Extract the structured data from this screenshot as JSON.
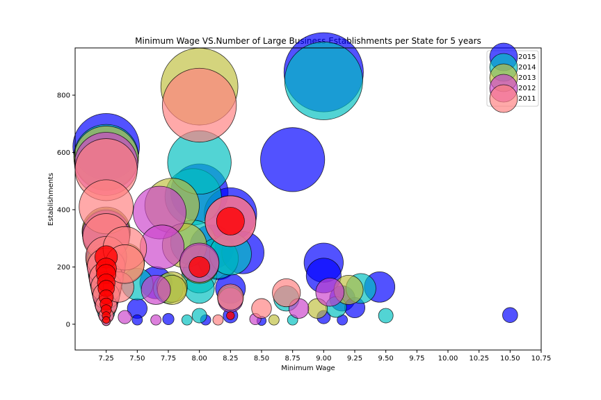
{
  "chart_data": {
    "type": "scatter",
    "title": "Minimum Wage VS.Number of Large Business Establishments per State for 5 years",
    "xlabel": "Minimum Wage",
    "ylabel": "Establishments",
    "xlim": [
      7.0,
      10.75
    ],
    "ylim": [
      -90,
      965
    ],
    "xticks": [
      7.25,
      7.5,
      7.75,
      8.0,
      8.25,
      8.5,
      8.75,
      9.0,
      9.25,
      9.5,
      9.75,
      10.0,
      10.25,
      10.5,
      10.75
    ],
    "xtick_labels": [
      "7.25",
      "7.50",
      "7.75",
      "8.00",
      "8.25",
      "8.50",
      "8.75",
      "9.00",
      "9.25",
      "9.50",
      "9.75",
      "10.00",
      "10.25",
      "10.50",
      "10.75"
    ],
    "yticks": [
      0,
      200,
      400,
      600,
      800
    ],
    "ytick_labels": [
      "0",
      "200",
      "400",
      "600",
      "800"
    ],
    "grid": false,
    "legend_position": "top-right",
    "marker_size_encodes": "establishments",
    "series": [
      {
        "name": "2015",
        "color": "#0000ff",
        "points": [
          [
            7.25,
            620
          ],
          [
            7.25,
            320
          ],
          [
            7.25,
            230
          ],
          [
            7.25,
            180
          ],
          [
            7.25,
            150
          ],
          [
            7.25,
            120
          ],
          [
            7.25,
            90
          ],
          [
            7.25,
            60
          ],
          [
            7.25,
            30
          ],
          [
            7.25,
            10
          ],
          [
            7.5,
            55
          ],
          [
            7.5,
            15
          ],
          [
            7.65,
            145
          ],
          [
            7.75,
            18
          ],
          [
            8.0,
            460
          ],
          [
            8.05,
            15
          ],
          [
            8.1,
            270
          ],
          [
            8.15,
            225
          ],
          [
            8.25,
            385
          ],
          [
            8.25,
            125
          ],
          [
            8.25,
            30
          ],
          [
            8.35,
            250
          ],
          [
            8.5,
            12
          ],
          [
            8.75,
            575
          ],
          [
            9.0,
            880
          ],
          [
            9.0,
            215
          ],
          [
            9.0,
            170
          ],
          [
            9.0,
            25
          ],
          [
            9.15,
            90
          ],
          [
            9.15,
            15
          ],
          [
            9.25,
            58
          ],
          [
            9.45,
            130
          ],
          [
            10.5,
            32
          ]
        ]
      },
      {
        "name": "2014",
        "color": "#00c0c0",
        "points": [
          [
            7.25,
            585
          ],
          [
            7.25,
            310
          ],
          [
            7.25,
            225
          ],
          [
            7.25,
            175
          ],
          [
            7.25,
            140
          ],
          [
            7.25,
            100
          ],
          [
            7.25,
            70
          ],
          [
            7.25,
            40
          ],
          [
            7.5,
            140
          ],
          [
            7.75,
            125
          ],
          [
            7.9,
            15
          ],
          [
            7.95,
            445
          ],
          [
            7.95,
            285
          ],
          [
            8.0,
            565
          ],
          [
            8.0,
            170
          ],
          [
            8.0,
            125
          ],
          [
            8.0,
            30
          ],
          [
            8.15,
            230
          ],
          [
            8.25,
            245
          ],
          [
            8.25,
            90
          ],
          [
            8.7,
            90
          ],
          [
            8.75,
            15
          ],
          [
            9.0,
            850
          ],
          [
            9.1,
            60
          ],
          [
            9.3,
            125
          ],
          [
            9.5,
            30
          ]
        ]
      },
      {
        "name": "2013",
        "color": "#c0c040",
        "points": [
          [
            7.25,
            580
          ],
          [
            7.25,
            325
          ],
          [
            7.25,
            215
          ],
          [
            7.25,
            165
          ],
          [
            7.25,
            120
          ],
          [
            7.25,
            70
          ],
          [
            7.4,
            215
          ],
          [
            7.78,
            415
          ],
          [
            7.78,
            130
          ],
          [
            7.78,
            120
          ],
          [
            7.88,
            275
          ],
          [
            8.0,
            830
          ],
          [
            8.0,
            210
          ],
          [
            8.6,
            15
          ],
          [
            8.95,
            55
          ],
          [
            9.2,
            120
          ]
        ]
      },
      {
        "name": "2012",
        "color": "#cc44cc",
        "points": [
          [
            7.25,
            560
          ],
          [
            7.25,
            315
          ],
          [
            7.25,
            205
          ],
          [
            7.25,
            160
          ],
          [
            7.25,
            110
          ],
          [
            7.25,
            75
          ],
          [
            7.25,
            30
          ],
          [
            7.4,
            25
          ],
          [
            7.65,
            15
          ],
          [
            7.65,
            120
          ],
          [
            7.68,
            390
          ],
          [
            7.7,
            270
          ],
          [
            8.0,
            215
          ],
          [
            8.25,
            360
          ],
          [
            8.25,
            85
          ],
          [
            8.45,
            18
          ],
          [
            8.8,
            55
          ],
          [
            9.05,
            112
          ]
        ]
      },
      {
        "name": "2011",
        "color": "#ff8080",
        "points": [
          [
            7.25,
            540
          ],
          [
            7.25,
            410
          ],
          [
            7.25,
            305
          ],
          [
            7.25,
            235
          ],
          [
            7.25,
            200
          ],
          [
            7.25,
            160
          ],
          [
            7.25,
            130
          ],
          [
            7.25,
            100
          ],
          [
            7.25,
            65
          ],
          [
            7.25,
            30
          ],
          [
            7.25,
            10
          ],
          [
            7.35,
            130
          ],
          [
            7.4,
            265
          ],
          [
            7.4,
            210
          ],
          [
            8.0,
            765
          ],
          [
            8.15,
            15
          ],
          [
            8.25,
            360
          ],
          [
            8.25,
            95
          ],
          [
            8.5,
            55
          ],
          [
            8.7,
            110
          ]
        ]
      }
    ],
    "overlay_points": {
      "color": "#ff0000",
      "points": [
        [
          7.25,
          235
        ],
        [
          7.25,
          195
        ],
        [
          7.25,
          175
        ],
        [
          7.25,
          145
        ],
        [
          7.25,
          125
        ],
        [
          7.25,
          95
        ],
        [
          7.25,
          70
        ],
        [
          7.25,
          50
        ],
        [
          7.25,
          30
        ],
        [
          7.25,
          15
        ],
        [
          8.0,
          200
        ],
        [
          8.25,
          360
        ],
        [
          8.25,
          30
        ]
      ]
    }
  }
}
